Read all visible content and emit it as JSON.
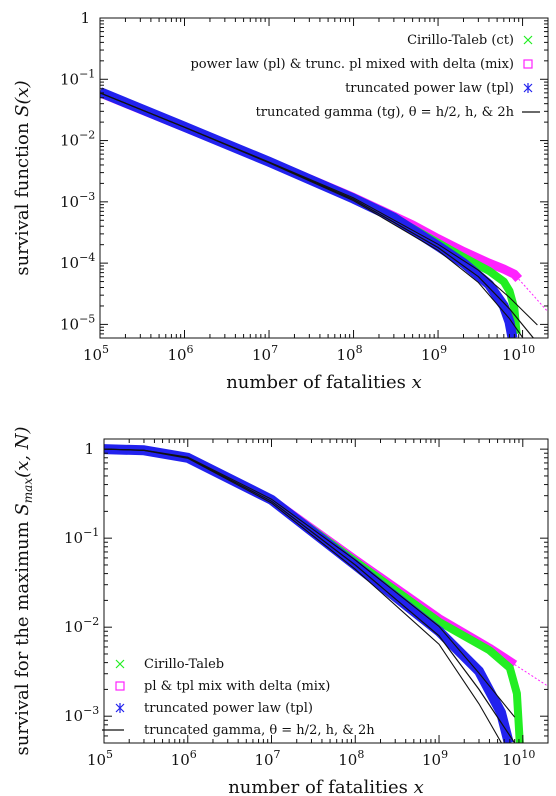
{
  "chart_data": [
    {
      "type": "line",
      "log_x": true,
      "log_y": true,
      "xlim": [
        100000,
        20000000000
      ],
      "ylim": [
        6e-06,
        1
      ],
      "x_ticks": [
        {
          "value": 100000,
          "base": "10",
          "exp": "5"
        },
        {
          "value": 1000000,
          "base": "10",
          "exp": "6"
        },
        {
          "value": 10000000,
          "base": "10",
          "exp": "7"
        },
        {
          "value": 100000000,
          "base": "10",
          "exp": "8"
        },
        {
          "value": 1000000000,
          "base": "10",
          "exp": "9"
        },
        {
          "value": 10000000000,
          "base": "10",
          "exp": "10"
        }
      ],
      "y_ticks": [
        {
          "value": 1,
          "base": "1",
          "exp": ""
        },
        {
          "value": 0.1,
          "base": "10",
          "exp": "−1"
        },
        {
          "value": 0.01,
          "base": "10",
          "exp": "−2"
        },
        {
          "value": 0.001,
          "base": "10",
          "exp": "−3"
        },
        {
          "value": 0.0001,
          "base": "10",
          "exp": "−4"
        },
        {
          "value": 1e-05,
          "base": "10",
          "exp": "−5"
        }
      ],
      "xlabel_text": "number of fatalities ",
      "xlabel_var": "x",
      "ylabel_text": "survival function ",
      "ylabel_var": "S(x)",
      "legend_position": "top-right",
      "series": [
        {
          "name": "Cirillo-Taleb (ct)",
          "color": "#22ee22",
          "marker": "x",
          "x": [
            100000,
            1000000,
            10000000,
            100000000,
            500000000,
            1000000000,
            2000000000,
            4000000000,
            6000000000,
            7000000000,
            8000000000,
            8500000000
          ],
          "y": [
            0.06,
            0.0165,
            0.0045,
            0.00117,
            0.00037,
            0.000215,
            0.000125,
            7.5e-05,
            5e-05,
            3.5e-05,
            1.8e-05,
            7e-06
          ]
        },
        {
          "name": "power law (pl) & trunc. pl mixed with delta (mix)",
          "color": "#ff22ff",
          "marker": "square",
          "x": [
            100000,
            1000000,
            10000000,
            100000000,
            500000000,
            1000000000,
            2000000000,
            4000000000,
            6000000000,
            8000000000,
            9000000000
          ],
          "y": [
            0.06,
            0.0165,
            0.0045,
            0.00118,
            0.00042,
            0.00025,
            0.000155,
            0.0001,
            8e-05,
            6.6e-05,
            5.5e-05
          ]
        },
        {
          "name": "truncated power law (tpl)",
          "color": "#2222ee",
          "marker": "asterisk",
          "x": [
            100000,
            1000000,
            10000000,
            100000000,
            300000000,
            1000000000,
            2000000000,
            4000000000,
            6000000000,
            7000000000,
            7600000000
          ],
          "y": [
            0.062,
            0.0168,
            0.0045,
            0.00113,
            0.00055,
            0.00019,
            0.0001,
            4.5e-05,
            2e-05,
            1.1e-05,
            6e-06
          ]
        },
        {
          "name": "truncated gamma (tg), θ = h/2, h, & 2h",
          "color": "#111111",
          "marker": "line",
          "x": [
            100000,
            1000000,
            10000000,
            100000000,
            1000000000,
            3000000000,
            7000000000,
            15000000000
          ],
          "y": [
            0.06,
            0.0165,
            0.0044,
            0.0011,
            0.00018,
            6e-05,
            1.8e-05,
            5e-06
          ]
        }
      ]
    },
    {
      "type": "line",
      "log_x": true,
      "log_y": true,
      "xlim": [
        100000,
        20000000000
      ],
      "ylim": [
        0.0005,
        1.3
      ],
      "x_ticks": [
        {
          "value": 100000,
          "base": "10",
          "exp": "5"
        },
        {
          "value": 1000000,
          "base": "10",
          "exp": "6"
        },
        {
          "value": 10000000,
          "base": "10",
          "exp": "7"
        },
        {
          "value": 100000000,
          "base": "10",
          "exp": "8"
        },
        {
          "value": 1000000000,
          "base": "10",
          "exp": "9"
        },
        {
          "value": 10000000000,
          "base": "10",
          "exp": "10"
        }
      ],
      "y_ticks": [
        {
          "value": 1,
          "base": "1",
          "exp": ""
        },
        {
          "value": 0.1,
          "base": "10",
          "exp": "−1"
        },
        {
          "value": 0.01,
          "base": "10",
          "exp": "−2"
        },
        {
          "value": 0.001,
          "base": "10",
          "exp": "−3"
        }
      ],
      "xlabel_text": "number of fatalities ",
      "xlabel_var": "x",
      "ylabel_text": "survival for the maximum ",
      "ylabel_var": "S",
      "ylabel_sub": "max",
      "ylabel_args": "(x, N)",
      "legend_position": "bottom-left",
      "series": [
        {
          "name": "Cirillo-Taleb",
          "color": "#22ee22",
          "marker": "x",
          "x": [
            100000,
            300000,
            1000000,
            10000000,
            100000000,
            1000000000,
            4000000000,
            7000000000,
            8500000000,
            9200000000
          ],
          "y": [
            1,
            0.97,
            0.8,
            0.27,
            0.055,
            0.0115,
            0.0055,
            0.0035,
            0.0018,
            0.0005
          ]
        },
        {
          "name": "pl & tpl mix with delta (mix)",
          "color": "#ff22ff",
          "marker": "square",
          "x": [
            100000,
            300000,
            1000000,
            10000000,
            100000000,
            1000000000,
            4000000000,
            8000000000
          ],
          "y": [
            1,
            0.97,
            0.8,
            0.27,
            0.057,
            0.0125,
            0.0058,
            0.0038
          ]
        },
        {
          "name": "truncated power law (tpl)",
          "color": "#2222ee",
          "marker": "asterisk",
          "x": [
            100000,
            300000,
            1000000,
            10000000,
            100000000,
            1000000000,
            3000000000,
            5500000000,
            6800000000
          ],
          "y": [
            1,
            0.97,
            0.8,
            0.27,
            0.05,
            0.009,
            0.0032,
            0.0011,
            0.0005
          ]
        },
        {
          "name": "truncated gamma, θ = h/2, h, & 2h",
          "color": "#111111",
          "marker": "line",
          "x": [
            100000,
            300000,
            1000000,
            10000000,
            100000000,
            1000000000,
            3000000000,
            8000000000
          ],
          "y": [
            1,
            0.97,
            0.8,
            0.26,
            0.05,
            0.008,
            0.002,
            0.0005
          ]
        }
      ]
    }
  ]
}
